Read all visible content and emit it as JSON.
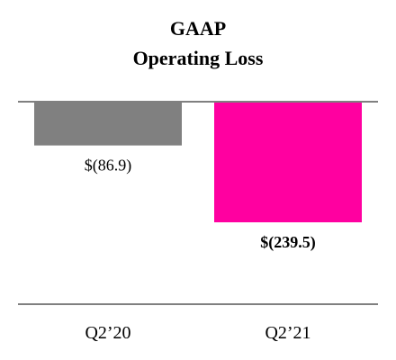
{
  "chart_data": {
    "type": "bar",
    "title_lines": [
      "GAAP",
      "Operating Loss"
    ],
    "categories": [
      "Q2’20",
      "Q2’21"
    ],
    "values": [
      -86.9,
      -239.5
    ],
    "value_labels": [
      "$(86.9)",
      "$(239.5)"
    ],
    "value_label_bold": [
      false,
      true
    ],
    "colors": [
      "#808080",
      "#ff00a0"
    ],
    "axis_color": "#808080",
    "grid": false,
    "legend": "none",
    "ylim": [
      -400,
      0
    ]
  }
}
